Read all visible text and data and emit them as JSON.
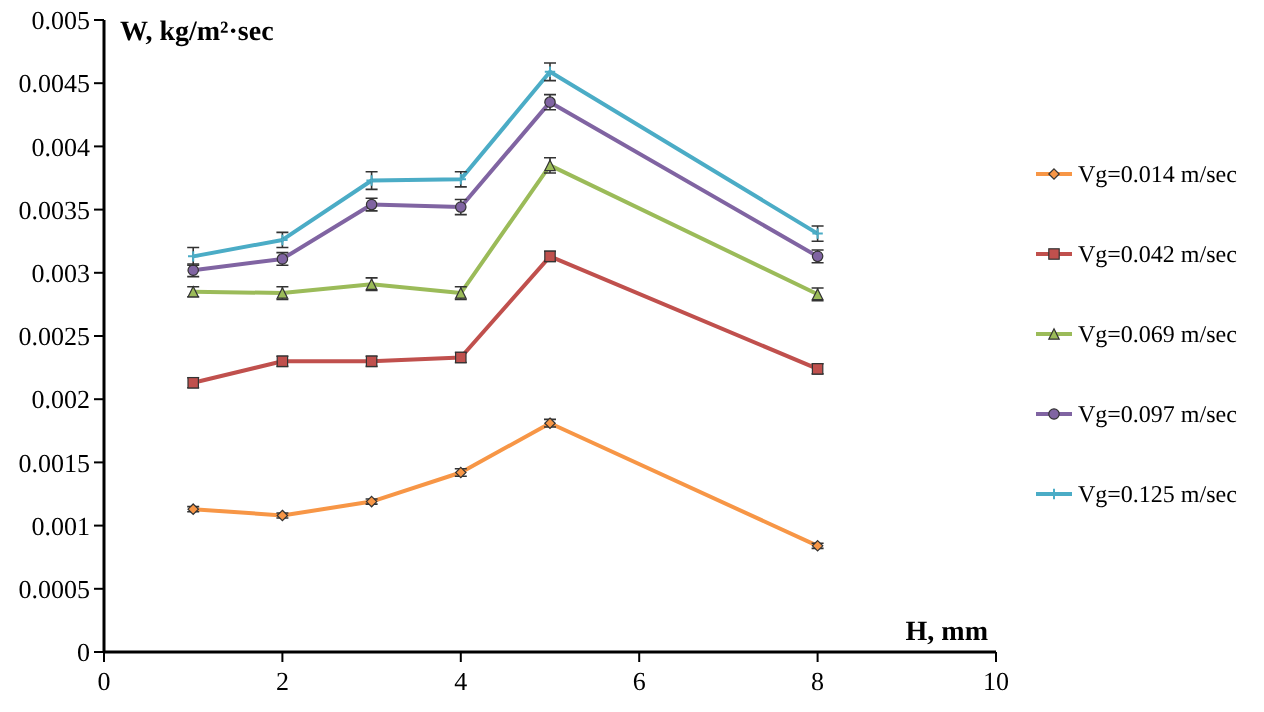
{
  "chart_data": {
    "type": "line",
    "xlabel": "H, mm",
    "ylabel": "W, kg/m²·sec",
    "xlim": [
      0,
      10
    ],
    "xticks": [
      0,
      2,
      4,
      6,
      8,
      10
    ],
    "ylim": [
      0,
      0.005
    ],
    "yticks": [
      0,
      0.0005,
      0.001,
      0.0015,
      0.002,
      0.0025,
      0.003,
      0.0035,
      0.004,
      0.0045,
      0.005
    ],
    "x": [
      1,
      2,
      3,
      4,
      5,
      8
    ],
    "grid": false,
    "legend": "right",
    "series": [
      {
        "name": "Vg=0.014 m/sec",
        "color": "#f79646",
        "marker": "diamond",
        "values": [
          0.00113,
          0.00108,
          0.00119,
          0.00142,
          0.00181,
          0.00084
        ],
        "errors": [
          2e-05,
          2e-05,
          2e-05,
          3e-05,
          3e-05,
          2e-05
        ]
      },
      {
        "name": "Vg=0.042 m/sec",
        "color": "#c0504d",
        "marker": "square",
        "values": [
          0.00213,
          0.0023,
          0.0023,
          0.00233,
          0.00313,
          0.00224
        ],
        "errors": [
          4e-05,
          4e-05,
          4e-05,
          4e-05,
          4e-05,
          4e-05
        ]
      },
      {
        "name": "Vg=0.069 m/sec",
        "color": "#9bbb59",
        "marker": "triangle",
        "values": [
          0.00285,
          0.00284,
          0.00291,
          0.00284,
          0.00385,
          0.00283
        ],
        "errors": [
          4e-05,
          5e-05,
          5e-05,
          5e-05,
          6e-05,
          5e-05
        ]
      },
      {
        "name": "Vg=0.097 m/sec",
        "color": "#8064a2",
        "marker": "circle",
        "values": [
          0.00302,
          0.00311,
          0.00354,
          0.00352,
          0.00435,
          0.00313
        ],
        "errors": [
          5e-05,
          5e-05,
          5e-05,
          6e-05,
          6e-05,
          5e-05
        ]
      },
      {
        "name": "Vg=0.125 m/sec",
        "color": "#4bacc6",
        "marker": "cross",
        "values": [
          0.00313,
          0.00326,
          0.00373,
          0.00374,
          0.00459,
          0.00331
        ],
        "errors": [
          7e-05,
          6e-05,
          7e-05,
          6e-05,
          7e-05,
          6e-05
        ]
      }
    ]
  }
}
